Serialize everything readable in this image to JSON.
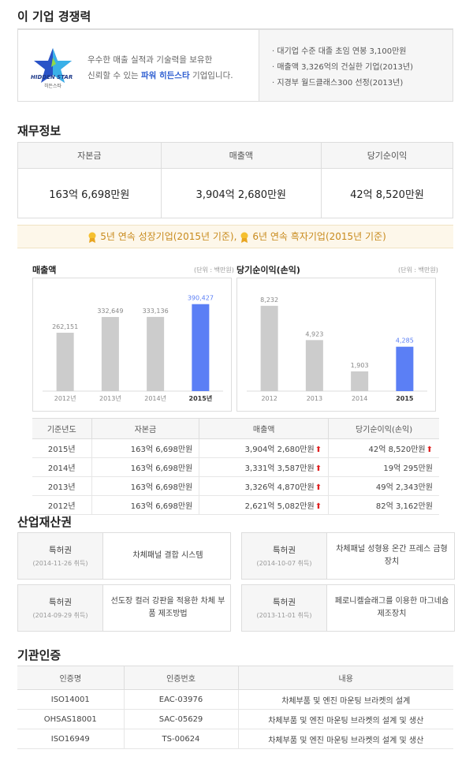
{
  "competitiveness": {
    "title": "이 기업 경쟁력",
    "logo_text": "HIDDEN STAR",
    "logo_sub": "히든스타",
    "desc_line1": "우수한 매출 실적과 기술력을 보유한",
    "desc_line2_pre": "신뢰할 수 있는 ",
    "desc_line2_hl": "파워 히든스타",
    "desc_line2_post": " 기업입니다.",
    "points": [
      "· 대기업 수준 대졸 초임 연봉 3,100만원",
      "· 매출액 3,326억의 건실한 기업(2013년)",
      "· 지경부 월드클래스300 선정(2013년)"
    ]
  },
  "finance": {
    "title": "재무정보",
    "headers": [
      "자본금",
      "매출액",
      "당기순이익"
    ],
    "values": [
      "163억 6,698만원",
      "3,904억 2,680만원",
      "42억 8,520만원"
    ],
    "ribbon_part1": "5년 연속 성장기업(2015년 기준),",
    "ribbon_part2": "6년 연속 흑자기업(2015년 기준)"
  },
  "charts": {
    "colors": {
      "bar": "#cccccc",
      "highlight": "#5b7ff5",
      "label": "#888888"
    },
    "revenue": {
      "title": "매출액",
      "unit": "(단위 : 백만원)"
    },
    "profit": {
      "title": "당기순이익(손익)",
      "unit": "(단위 : 백만원)"
    }
  },
  "chart_data": [
    {
      "type": "bar",
      "title": "매출액",
      "unit": "(단위 : 백만원)",
      "categories": [
        "2012년",
        "2013년",
        "2014년",
        "2015년"
      ],
      "values": [
        262151,
        332649,
        333136,
        390427
      ],
      "value_labels": [
        "262,151",
        "332,649",
        "333,136",
        "390,427"
      ],
      "highlight_index": 3,
      "ylim": [
        0,
        400000
      ]
    },
    {
      "type": "bar",
      "title": "당기순이익(손익)",
      "unit": "(단위 : 백만원)",
      "categories": [
        "2012",
        "2013",
        "2014",
        "2015"
      ],
      "values": [
        8232,
        4923,
        1903,
        4285
      ],
      "value_labels": [
        "8,232",
        "4,923",
        "1,903",
        "4,285"
      ],
      "highlight_index": 3,
      "ylim": [
        0,
        8600
      ]
    }
  ],
  "year_table": {
    "headers": [
      "기준년도",
      "자본금",
      "매출액",
      "당기순이익(손익)"
    ],
    "rows": [
      {
        "year": "2015년",
        "capital": "163억 6,698만원",
        "revenue": "3,904억 2,680만원",
        "revenue_up": true,
        "profit": "42억 8,520만원",
        "profit_up": true
      },
      {
        "year": "2014년",
        "capital": "163억 6,698만원",
        "revenue": "3,331억 3,587만원",
        "revenue_up": true,
        "profit": "19억 295만원",
        "profit_up": false
      },
      {
        "year": "2013년",
        "capital": "163억 6,698만원",
        "revenue": "3,326억 4,870만원",
        "revenue_up": true,
        "profit": "49억 2,343만원",
        "profit_up": false
      },
      {
        "year": "2012년",
        "capital": "163억 6,698만원",
        "revenue": "2,621억 5,082만원",
        "revenue_up": true,
        "profit": "82억 3,162만원",
        "profit_up": false
      }
    ],
    "up_arrow": "⬆"
  },
  "patents": {
    "title": "산업재산권",
    "items": [
      {
        "type": "특허권",
        "date": "(2014-11-26 취득)",
        "name": "차체패널 결합 시스템"
      },
      {
        "type": "특허권",
        "date": "(2014-10-07 취득)",
        "name": "차체패널 성형용 온간 프레스 금형장치"
      },
      {
        "type": "특허권",
        "date": "(2014-09-29 취득)",
        "name": "선도장 컬러 강판을 적용한 차체 부품 제조방법"
      },
      {
        "type": "특허권",
        "date": "(2013-11-01 취득)",
        "name": "페로니켈슬래그를 이용한 마그네슘 제조장치"
      }
    ]
  },
  "certs": {
    "title": "기관인증",
    "headers": [
      "인증명",
      "인증번호",
      "내용"
    ],
    "rows": [
      [
        "ISO14001",
        "EAC-03976",
        "차체부품 및 엔진 마운팅 브라켓의 설계"
      ],
      [
        "OHSAS18001",
        "SAC-05629",
        "차체부품 및 엔진 마운팅 브라켓의 설계 및 생산"
      ],
      [
        "ISO16949",
        "TS-00624",
        "차체부품 및 엔진 마운팅 브라켓의 설계 및 생산"
      ]
    ]
  }
}
